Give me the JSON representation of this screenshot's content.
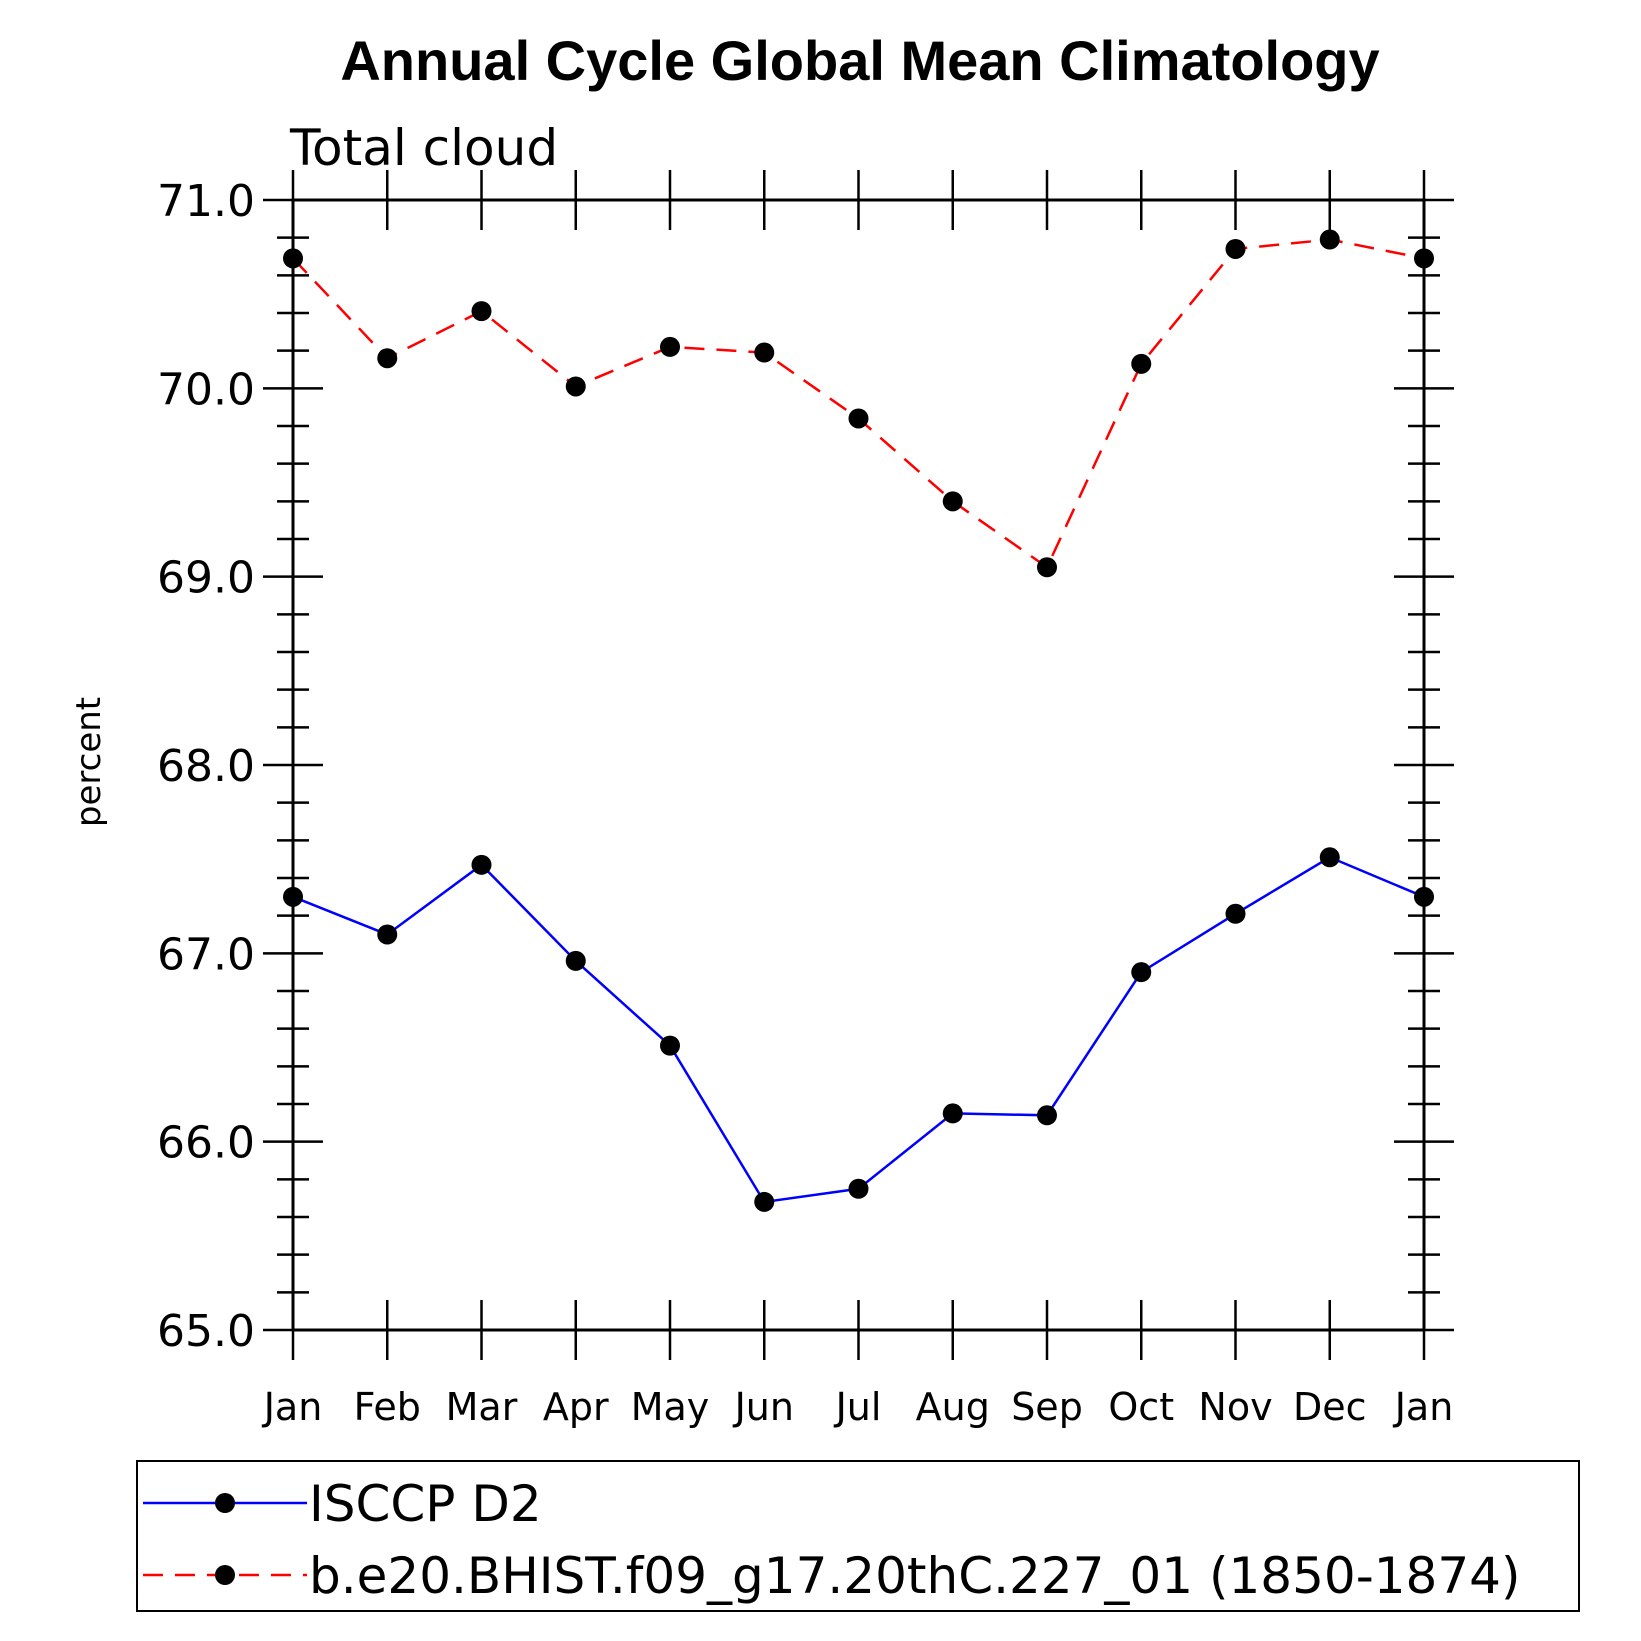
{
  "chart_data": {
    "type": "line",
    "title": "Annual Cycle Global Mean Climatology",
    "subtitle": "Total cloud",
    "ylabel": "percent",
    "xlabel": "",
    "categories": [
      "Jan",
      "Feb",
      "Mar",
      "Apr",
      "May",
      "Jun",
      "Jul",
      "Aug",
      "Sep",
      "Oct",
      "Nov",
      "Dec",
      "Jan"
    ],
    "ylim": [
      65.0,
      71.0
    ],
    "yticks": [
      "65.0",
      "66.0",
      "67.0",
      "68.0",
      "69.0",
      "70.0",
      "71.0"
    ],
    "grid": false,
    "legend_position": "bottom",
    "series": [
      {
        "name": "ISCCP D2",
        "color": "#0000ff",
        "line_style": "solid",
        "marker": "filled-circle",
        "values": [
          67.3,
          67.1,
          67.47,
          66.96,
          66.51,
          65.68,
          65.75,
          66.15,
          66.14,
          66.9,
          67.21,
          67.51,
          67.3
        ]
      },
      {
        "name": "b.e20.BHIST.f09_g17.20thC.227_01 (1850-1874)",
        "color": "#ff0000",
        "line_style": "dashed",
        "marker": "filled-circle",
        "values": [
          70.69,
          70.16,
          70.41,
          70.01,
          70.22,
          70.19,
          69.84,
          69.4,
          69.05,
          70.13,
          70.74,
          70.79,
          70.69
        ]
      }
    ]
  }
}
